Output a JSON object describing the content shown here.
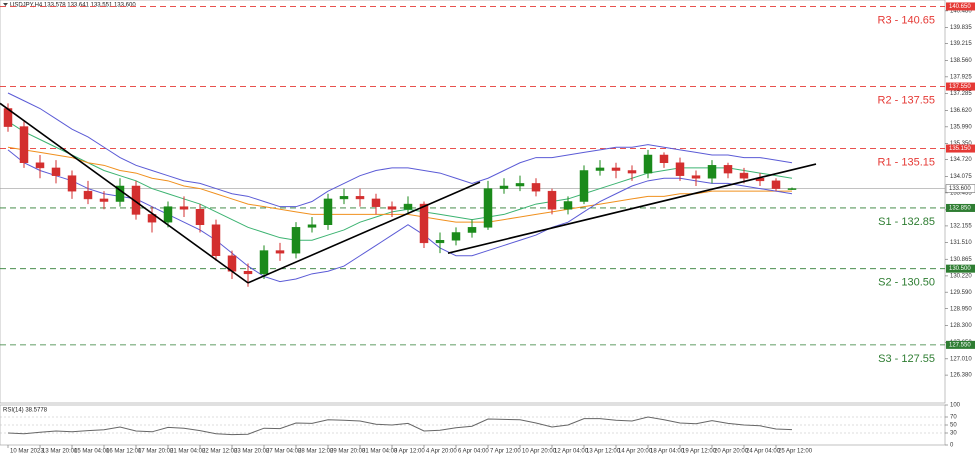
{
  "chart_data": {
    "type": "candlestick",
    "title": "USDJPY,H4  133.578 133.641 133.551 133.600",
    "categories": [
      "10 Mar 2023",
      null,
      "13 Mar 20:00",
      null,
      "15 Mar 04:00",
      null,
      "16 Mar 12:00",
      null,
      "17 Mar 20:00",
      null,
      "21 Mar 04:00",
      null,
      "22 Mar 12:00",
      null,
      "23 Mar 20:00",
      null,
      "27 Mar 04:00",
      null,
      "28 Mar 12:00",
      null,
      "29 Mar 20:00",
      null,
      "31 Mar 04:00",
      null,
      "3 Apr 12:00",
      null,
      "4 Apr 20:00",
      null,
      "6 Apr 04:00",
      null,
      "7 Apr 12:00",
      null,
      "10 Apr 20:00",
      null,
      "12 Apr 04:00",
      null,
      "13 Apr 12:00",
      null,
      "14 Apr 20:00",
      null,
      "18 Apr 04:00",
      null,
      "19 Apr 12:00",
      null,
      "20 Apr 20:00",
      null,
      "24 Apr 04:00",
      null,
      "25 Apr 12:00",
      null
    ],
    "open": [
      136.7,
      136.0,
      134.6,
      134.4,
      134.1,
      133.5,
      133.2,
      133.1,
      133.7,
      132.6,
      132.3,
      132.9,
      132.8,
      132.2,
      131.0,
      130.4,
      130.3,
      131.2,
      131.1,
      132.1,
      132.2,
      133.2,
      133.3,
      133.2,
      132.9,
      132.8,
      133.0,
      131.5,
      131.6,
      131.9,
      132.1,
      133.6,
      133.7,
      133.8,
      133.5,
      132.8,
      133.1,
      134.3,
      134.4,
      134.3,
      134.2,
      134.9,
      134.6,
      134.1,
      134.0,
      134.5,
      134.2,
      134.0,
      133.9,
      133.578
    ],
    "high": [
      136.9,
      136.2,
      134.9,
      134.7,
      134.3,
      133.9,
      133.5,
      134.0,
      133.9,
      132.9,
      133.1,
      133.3,
      133.0,
      132.4,
      131.2,
      130.7,
      131.4,
      131.5,
      132.3,
      132.5,
      133.4,
      133.6,
      133.6,
      133.4,
      133.1,
      133.3,
      133.1,
      131.9,
      132.1,
      132.4,
      133.9,
      134.0,
      134.1,
      134.0,
      133.6,
      133.3,
      134.5,
      134.7,
      134.6,
      134.5,
      135.1,
      135.0,
      134.8,
      134.3,
      134.7,
      134.6,
      134.4,
      134.2,
      134.0,
      133.641
    ],
    "low": [
      135.8,
      134.4,
      134.0,
      133.8,
      133.2,
      133.0,
      132.8,
      132.9,
      132.4,
      131.9,
      132.1,
      132.5,
      131.9,
      130.8,
      130.1,
      129.8,
      130.1,
      130.8,
      130.9,
      131.9,
      132.0,
      133.0,
      132.9,
      132.6,
      132.5,
      132.6,
      131.3,
      131.1,
      131.4,
      131.7,
      132.0,
      133.4,
      133.5,
      133.3,
      132.6,
      132.6,
      133.0,
      134.1,
      134.0,
      133.9,
      134.0,
      134.4,
      133.9,
      133.7,
      133.8,
      134.0,
      133.8,
      133.7,
      133.5,
      133.551
    ],
    "close": [
      136.0,
      134.6,
      134.4,
      134.1,
      133.5,
      133.2,
      133.1,
      133.7,
      132.6,
      132.3,
      132.9,
      132.8,
      132.2,
      131.0,
      130.4,
      130.3,
      131.2,
      131.1,
      132.1,
      132.2,
      133.2,
      133.3,
      133.2,
      132.9,
      132.8,
      133.0,
      131.5,
      131.6,
      131.9,
      132.1,
      133.6,
      133.7,
      133.8,
      133.5,
      132.8,
      133.1,
      134.3,
      134.4,
      134.3,
      134.2,
      134.9,
      134.6,
      134.1,
      134.0,
      134.5,
      134.2,
      134.0,
      133.9,
      133.6,
      133.6
    ],
    "up_color": "#1b8a1b",
    "down_color": "#d32f2f",
    "ylim": [
      125.3,
      140.9
    ],
    "yticks": [
      {
        "value": 140.48,
        "label": "140.480"
      },
      {
        "value": 139.835,
        "label": "139.835"
      },
      {
        "value": 139.215,
        "label": "139.215"
      },
      {
        "value": 138.56,
        "label": "138.560"
      },
      {
        "value": 137.925,
        "label": "137.925"
      },
      {
        "value": 137.285,
        "label": "137.285"
      },
      {
        "value": 136.62,
        "label": "136.620"
      },
      {
        "value": 135.99,
        "label": "135.990"
      },
      {
        "value": 135.35,
        "label": "135.350"
      },
      {
        "value": 134.72,
        "label": "134.720"
      },
      {
        "value": 134.075,
        "label": "134.075"
      },
      {
        "value": 133.435,
        "label": "133.435"
      },
      {
        "value": 132.775,
        "label": "132.775"
      },
      {
        "value": 132.155,
        "label": "132.155"
      },
      {
        "value": 131.51,
        "label": "131.510"
      },
      {
        "value": 130.865,
        "label": "130.865"
      },
      {
        "value": 130.22,
        "label": "130.220"
      },
      {
        "value": 129.59,
        "label": "129.590"
      },
      {
        "value": 128.95,
        "label": "128.950"
      },
      {
        "value": 128.3,
        "label": "128.300"
      },
      {
        "value": 127.65,
        "label": "127.650"
      },
      {
        "value": 127.01,
        "label": "127.010"
      },
      {
        "value": 126.38,
        "label": "126.380"
      }
    ],
    "lines": [
      {
        "color": "#3cb371",
        "values": [
          136.2,
          135.8,
          135.5,
          135.2,
          134.9,
          134.6,
          134.3,
          134.1,
          133.9,
          133.6,
          133.4,
          133.2,
          133.0,
          132.7,
          132.4,
          132.1,
          131.9,
          131.7,
          131.6,
          131.6,
          131.8,
          132.0,
          132.3,
          132.5,
          132.7,
          132.8,
          132.7,
          132.6,
          132.5,
          132.4,
          132.5,
          132.6,
          132.8,
          133.0,
          133.1,
          133.2,
          133.4,
          133.6,
          133.8,
          134.0,
          134.2,
          134.3,
          134.4,
          134.4,
          134.4,
          134.4,
          134.3,
          134.2,
          134.1,
          134.0
        ]
      },
      {
        "color": "#f0901e",
        "values": [
          135.2,
          135.1,
          135.0,
          134.9,
          134.8,
          134.6,
          134.5,
          134.3,
          134.2,
          134.0,
          133.9,
          133.7,
          133.6,
          133.4,
          133.2,
          133.0,
          132.9,
          132.8,
          132.7,
          132.6,
          132.6,
          132.6,
          132.6,
          132.6,
          132.6,
          132.6,
          132.5,
          132.4,
          132.3,
          132.3,
          132.3,
          132.4,
          132.5,
          132.6,
          132.7,
          132.8,
          132.9,
          133.0,
          133.1,
          133.2,
          133.3,
          133.3,
          133.4,
          133.4,
          133.5,
          133.5,
          133.5,
          133.5,
          133.5,
          133.5
        ]
      },
      {
        "color": "#5b5bd6",
        "values": [
          137.3,
          137.0,
          136.7,
          136.3,
          135.9,
          135.6,
          135.2,
          134.8,
          134.5,
          134.3,
          134.1,
          133.9,
          133.8,
          133.6,
          133.4,
          133.3,
          133.1,
          132.9,
          132.9,
          133.1,
          133.5,
          133.8,
          134.1,
          134.3,
          134.4,
          134.4,
          134.3,
          134.2,
          134.0,
          133.8,
          134.0,
          134.3,
          134.6,
          134.8,
          134.8,
          134.9,
          135.0,
          135.1,
          135.2,
          135.2,
          135.3,
          135.2,
          135.1,
          135.0,
          134.9,
          134.9,
          134.8,
          134.8,
          134.7,
          134.6
        ]
      },
      {
        "color": "#5b5bd6",
        "values": [
          135.1,
          134.6,
          134.3,
          134.1,
          133.9,
          133.6,
          133.4,
          133.3,
          133.2,
          132.9,
          132.6,
          132.3,
          132.0,
          131.6,
          131.1,
          130.6,
          130.2,
          130.0,
          130.1,
          130.3,
          130.4,
          130.6,
          131.0,
          131.4,
          131.8,
          132.2,
          131.8,
          131.3,
          131.0,
          131.0,
          131.2,
          131.4,
          131.6,
          131.8,
          132.1,
          132.3,
          132.7,
          133.1,
          133.4,
          133.7,
          133.9,
          134.0,
          134.0,
          133.9,
          133.8,
          133.8,
          133.7,
          133.6,
          133.5,
          133.4
        ]
      }
    ],
    "trendlines": [
      {
        "x": [
          -0.5,
          15
        ],
        "y": [
          136.9,
          129.95
        ]
      },
      {
        "x": [
          15,
          29.5
        ],
        "y": [
          129.95,
          133.85
        ]
      },
      {
        "x": [
          27.5,
          50.5
        ],
        "y": [
          131.1,
          134.55
        ]
      }
    ],
    "levels": [
      {
        "value": 140.65,
        "text": "R3 - 140.65",
        "axis_label": "140.650",
        "color": "#e53935"
      },
      {
        "value": 137.55,
        "text": "R2 - 137.55",
        "axis_label": "137.550",
        "color": "#e53935"
      },
      {
        "value": 135.15,
        "text": "R1 - 135.15",
        "axis_label": "135.150",
        "color": "#e53935"
      },
      {
        "value": 132.85,
        "text": "S1 - 132.85",
        "axis_label": "132.850",
        "color": "#2e7d32"
      },
      {
        "value": 130.5,
        "text": "S2 - 130.50",
        "axis_label": "130.500",
        "color": "#2e7d32"
      },
      {
        "value": 127.55,
        "text": "S3 - 127.55",
        "axis_label": "127.550",
        "color": "#2e7d32"
      }
    ],
    "last_price": {
      "value": 133.6,
      "axis_label": "133.600"
    },
    "rsi": {
      "title": "RSI(14) 38.5778",
      "color": "#666666",
      "ylim": [
        0,
        100
      ],
      "yticks": [
        100,
        70,
        50,
        30,
        0
      ],
      "values": [
        30,
        28,
        32,
        35,
        33,
        36,
        38,
        45,
        35,
        33,
        44,
        42,
        36,
        28,
        26,
        27,
        42,
        41,
        55,
        54,
        63,
        62,
        60,
        52,
        50,
        54,
        35,
        37,
        43,
        47,
        65,
        64,
        63,
        55,
        45,
        50,
        66,
        66,
        62,
        60,
        70,
        63,
        55,
        53,
        61,
        54,
        50,
        48,
        40,
        38.5778
      ]
    }
  }
}
